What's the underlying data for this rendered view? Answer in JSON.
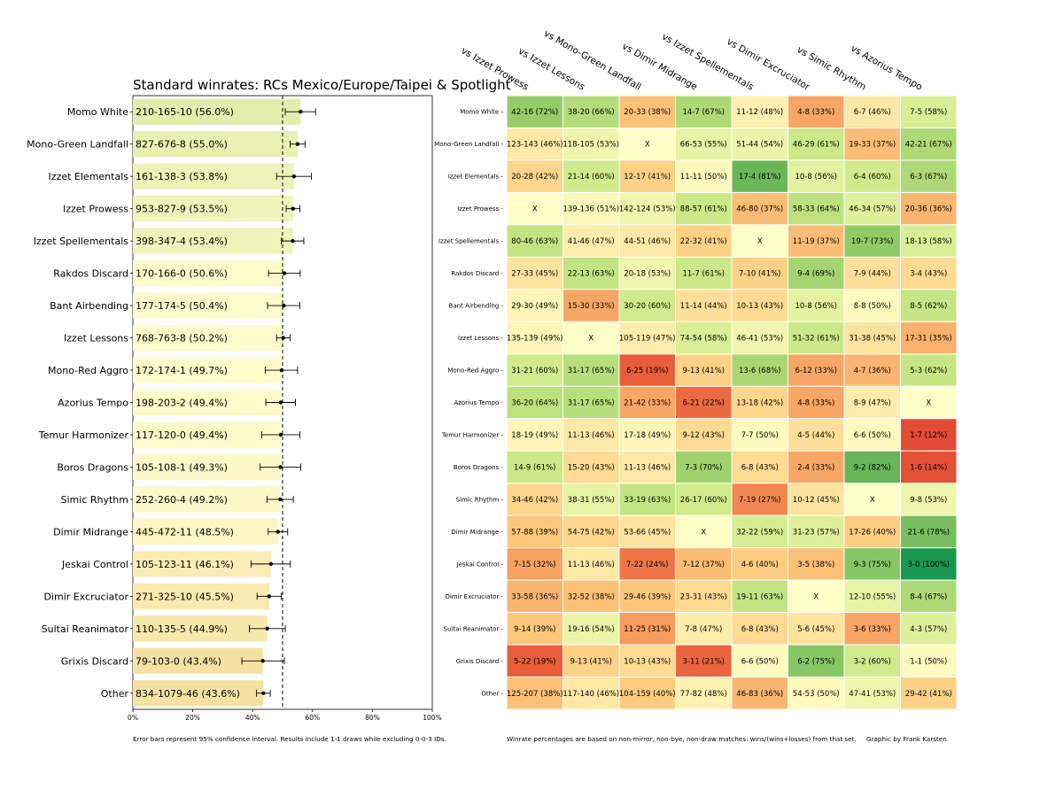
{
  "chart_data": [
    {
      "type": "bar",
      "title": "Standard winrates: RCs Mexico/Europe/Taipei & Spotlight",
      "xlabel": "",
      "ylabel": "",
      "xlim": [
        0,
        100
      ],
      "x_ticks": [
        "0%",
        "20%",
        "40%",
        "60%",
        "80%",
        "100%"
      ],
      "reference_line": 50,
      "orientation": "horizontal",
      "categories": [
        "Momo White",
        "Mono-Green Landfall",
        "Izzet Elementals",
        "Izzet Prowess",
        "Izzet Spellementals",
        "Rakdos Discard",
        "Bant Airbending",
        "Izzet Lessons",
        "Mono-Red Aggro",
        "Azorius Tempo",
        "Temur Harmonizer",
        "Boros Dragons",
        "Simic Rhythm",
        "Dimir Midrange",
        "Jeskai Control",
        "Dimir Excruciator",
        "Sultai Reanimator",
        "Grixis Discard",
        "Other"
      ],
      "values": [
        56.0,
        55.0,
        53.8,
        53.5,
        53.4,
        50.6,
        50.4,
        50.2,
        49.7,
        49.4,
        49.4,
        49.3,
        49.2,
        48.5,
        46.1,
        45.5,
        44.9,
        43.4,
        43.6
      ],
      "bar_labels": [
        "210-165-10 (56.0%)",
        "827-676-8 (55.0%)",
        "161-138-3 (53.8%)",
        "953-827-9 (53.5%)",
        "398-347-4 (53.4%)",
        "170-166-0 (50.6%)",
        "177-174-5 (50.4%)",
        "768-763-8 (50.2%)",
        "172-174-1 (49.7%)",
        "198-203-2 (49.4%)",
        "117-120-0 (49.4%)",
        "105-108-1 (49.3%)",
        "252-260-4 (49.2%)",
        "445-472-11 (48.5%)",
        "105-123-11 (46.1%)",
        "271-325-10 (45.5%)",
        "110-135-5 (44.9%)",
        "79-103-0 (43.4%)",
        "834-1079-46 (43.6%)"
      ],
      "ci_low": [
        50.9,
        52.5,
        48.0,
        51.2,
        49.6,
        45.3,
        45.0,
        48.0,
        44.2,
        44.4,
        43.0,
        42.5,
        44.8,
        45.2,
        39.5,
        41.5,
        38.9,
        36.4,
        41.3
      ],
      "ci_high": [
        61.0,
        57.5,
        59.6,
        55.8,
        57.1,
        55.9,
        55.8,
        52.5,
        55.0,
        54.3,
        55.8,
        56.1,
        53.6,
        51.7,
        52.6,
        49.6,
        50.9,
        50.6,
        45.9
      ],
      "note": "Error bars represent 95% confidence interval. Results include 1-1 draws while excluding 0-0-3 IDs."
    },
    {
      "type": "heatmap",
      "columns": [
        "vs Izzet Prowess",
        "vs Izzet Lessons",
        "vs Mono-Green Landfall",
        "vs Dimir Midrange",
        "vs Izzet Spellementals",
        "vs Dimir Excruciator",
        "vs Simic Rhythm",
        "vs Azorius Tempo"
      ],
      "rows": [
        "Momo White",
        "Mono-Green Landfall",
        "Izzet Elementals",
        "Izzet Prowess",
        "Izzet Spellementals",
        "Rakdos Discard",
        "Bant Airbending",
        "Izzet Lessons",
        "Mono-Red Aggro",
        "Azorius Tempo",
        "Temur Harmonizer",
        "Boros Dragons",
        "Simic Rhythm",
        "Dimir Midrange",
        "Jeskai Control",
        "Dimir Excruciator",
        "Sultai Reanimator",
        "Grixis Discard",
        "Other"
      ],
      "cells": [
        [
          "42-16 (72%)",
          "38-20 (66%)",
          "20-33 (38%)",
          "14-7 (67%)",
          "11-12 (48%)",
          "4-8 (33%)",
          "6-7 (46%)",
          "7-5 (58%)"
        ],
        [
          "123-143 (46%)",
          "118-105 (53%)",
          "X",
          "66-53 (55%)",
          "51-44 (54%)",
          "46-29 (61%)",
          "19-33 (37%)",
          "42-21 (67%)"
        ],
        [
          "20-28 (42%)",
          "21-14 (60%)",
          "12-17 (41%)",
          "11-11 (50%)",
          "17-4 (81%)",
          "10-8 (56%)",
          "6-4 (60%)",
          "6-3 (67%)"
        ],
        [
          "X",
          "139-136 (51%)",
          "142-124 (53%)",
          "88-57 (61%)",
          "46-80 (37%)",
          "58-33 (64%)",
          "46-34 (57%)",
          "20-36 (36%)"
        ],
        [
          "80-46 (63%)",
          "41-46 (47%)",
          "44-51 (46%)",
          "22-32 (41%)",
          "X",
          "11-19 (37%)",
          "19-7 (73%)",
          "18-13 (58%)"
        ],
        [
          "27-33 (45%)",
          "22-13 (63%)",
          "20-18 (53%)",
          "11-7 (61%)",
          "7-10 (41%)",
          "9-4 (69%)",
          "7-9 (44%)",
          "3-4 (43%)"
        ],
        [
          "29-30 (49%)",
          "15-30 (33%)",
          "30-20 (60%)",
          "11-14 (44%)",
          "10-13 (43%)",
          "10-8 (56%)",
          "8-8 (50%)",
          "8-5 (62%)"
        ],
        [
          "135-139 (49%)",
          "X",
          "105-119 (47%)",
          "74-54 (58%)",
          "46-41 (53%)",
          "51-32 (61%)",
          "31-38 (45%)",
          "17-31 (35%)"
        ],
        [
          "31-21 (60%)",
          "31-17 (65%)",
          "6-25 (19%)",
          "9-13 (41%)",
          "13-6 (68%)",
          "6-12 (33%)",
          "4-7 (36%)",
          "5-3 (62%)"
        ],
        [
          "36-20 (64%)",
          "31-17 (65%)",
          "21-42 (33%)",
          "6-21 (22%)",
          "13-18 (42%)",
          "4-8 (33%)",
          "8-9 (47%)",
          "X"
        ],
        [
          "18-19 (49%)",
          "11-13 (46%)",
          "17-18 (49%)",
          "9-12 (43%)",
          "7-7 (50%)",
          "4-5 (44%)",
          "6-6 (50%)",
          "1-7 (12%)"
        ],
        [
          "14-9 (61%)",
          "15-20 (43%)",
          "11-13 (46%)",
          "7-3 (70%)",
          "6-8 (43%)",
          "2-4 (33%)",
          "9-2 (82%)",
          "1-6 (14%)"
        ],
        [
          "34-46 (42%)",
          "38-31 (55%)",
          "33-19 (63%)",
          "26-17 (60%)",
          "7-19 (27%)",
          "10-12 (45%)",
          "X",
          "9-8 (53%)"
        ],
        [
          "57-88 (39%)",
          "54-75 (42%)",
          "53-66 (45%)",
          "X",
          "32-22 (59%)",
          "31-23 (57%)",
          "17-26 (40%)",
          "21-6 (78%)"
        ],
        [
          "7-15 (32%)",
          "11-13 (46%)",
          "7-22 (24%)",
          "7-12 (37%)",
          "4-6 (40%)",
          "3-5 (38%)",
          "9-3 (75%)",
          "3-0 (100%)"
        ],
        [
          "33-58 (36%)",
          "32-52 (38%)",
          "29-46 (39%)",
          "23-31 (43%)",
          "19-11 (63%)",
          "X",
          "12-10 (55%)",
          "8-4 (67%)"
        ],
        [
          "9-14 (39%)",
          "19-16 (54%)",
          "11-25 (31%)",
          "7-8 (47%)",
          "6-8 (43%)",
          "5-6 (45%)",
          "3-6 (33%)",
          "4-3 (57%)"
        ],
        [
          "5-22 (19%)",
          "9-13 (41%)",
          "10-13 (43%)",
          "3-11 (21%)",
          "6-6 (50%)",
          "6-2 (75%)",
          "3-2 (60%)",
          "1-1 (50%)"
        ],
        [
          "125-207 (38%)",
          "117-140 (46%)",
          "104-159 (40%)",
          "77-82 (48%)",
          "46-83 (36%)",
          "54-53 (50%)",
          "47-41 (53%)",
          "29-42 (41%)"
        ]
      ],
      "note": "Winrate percentages are based on non-mirror, non-bye, non-draw matches: wins/(wins+losses) from that set.",
      "credit": "Graphic by Frank Karsten"
    }
  ]
}
